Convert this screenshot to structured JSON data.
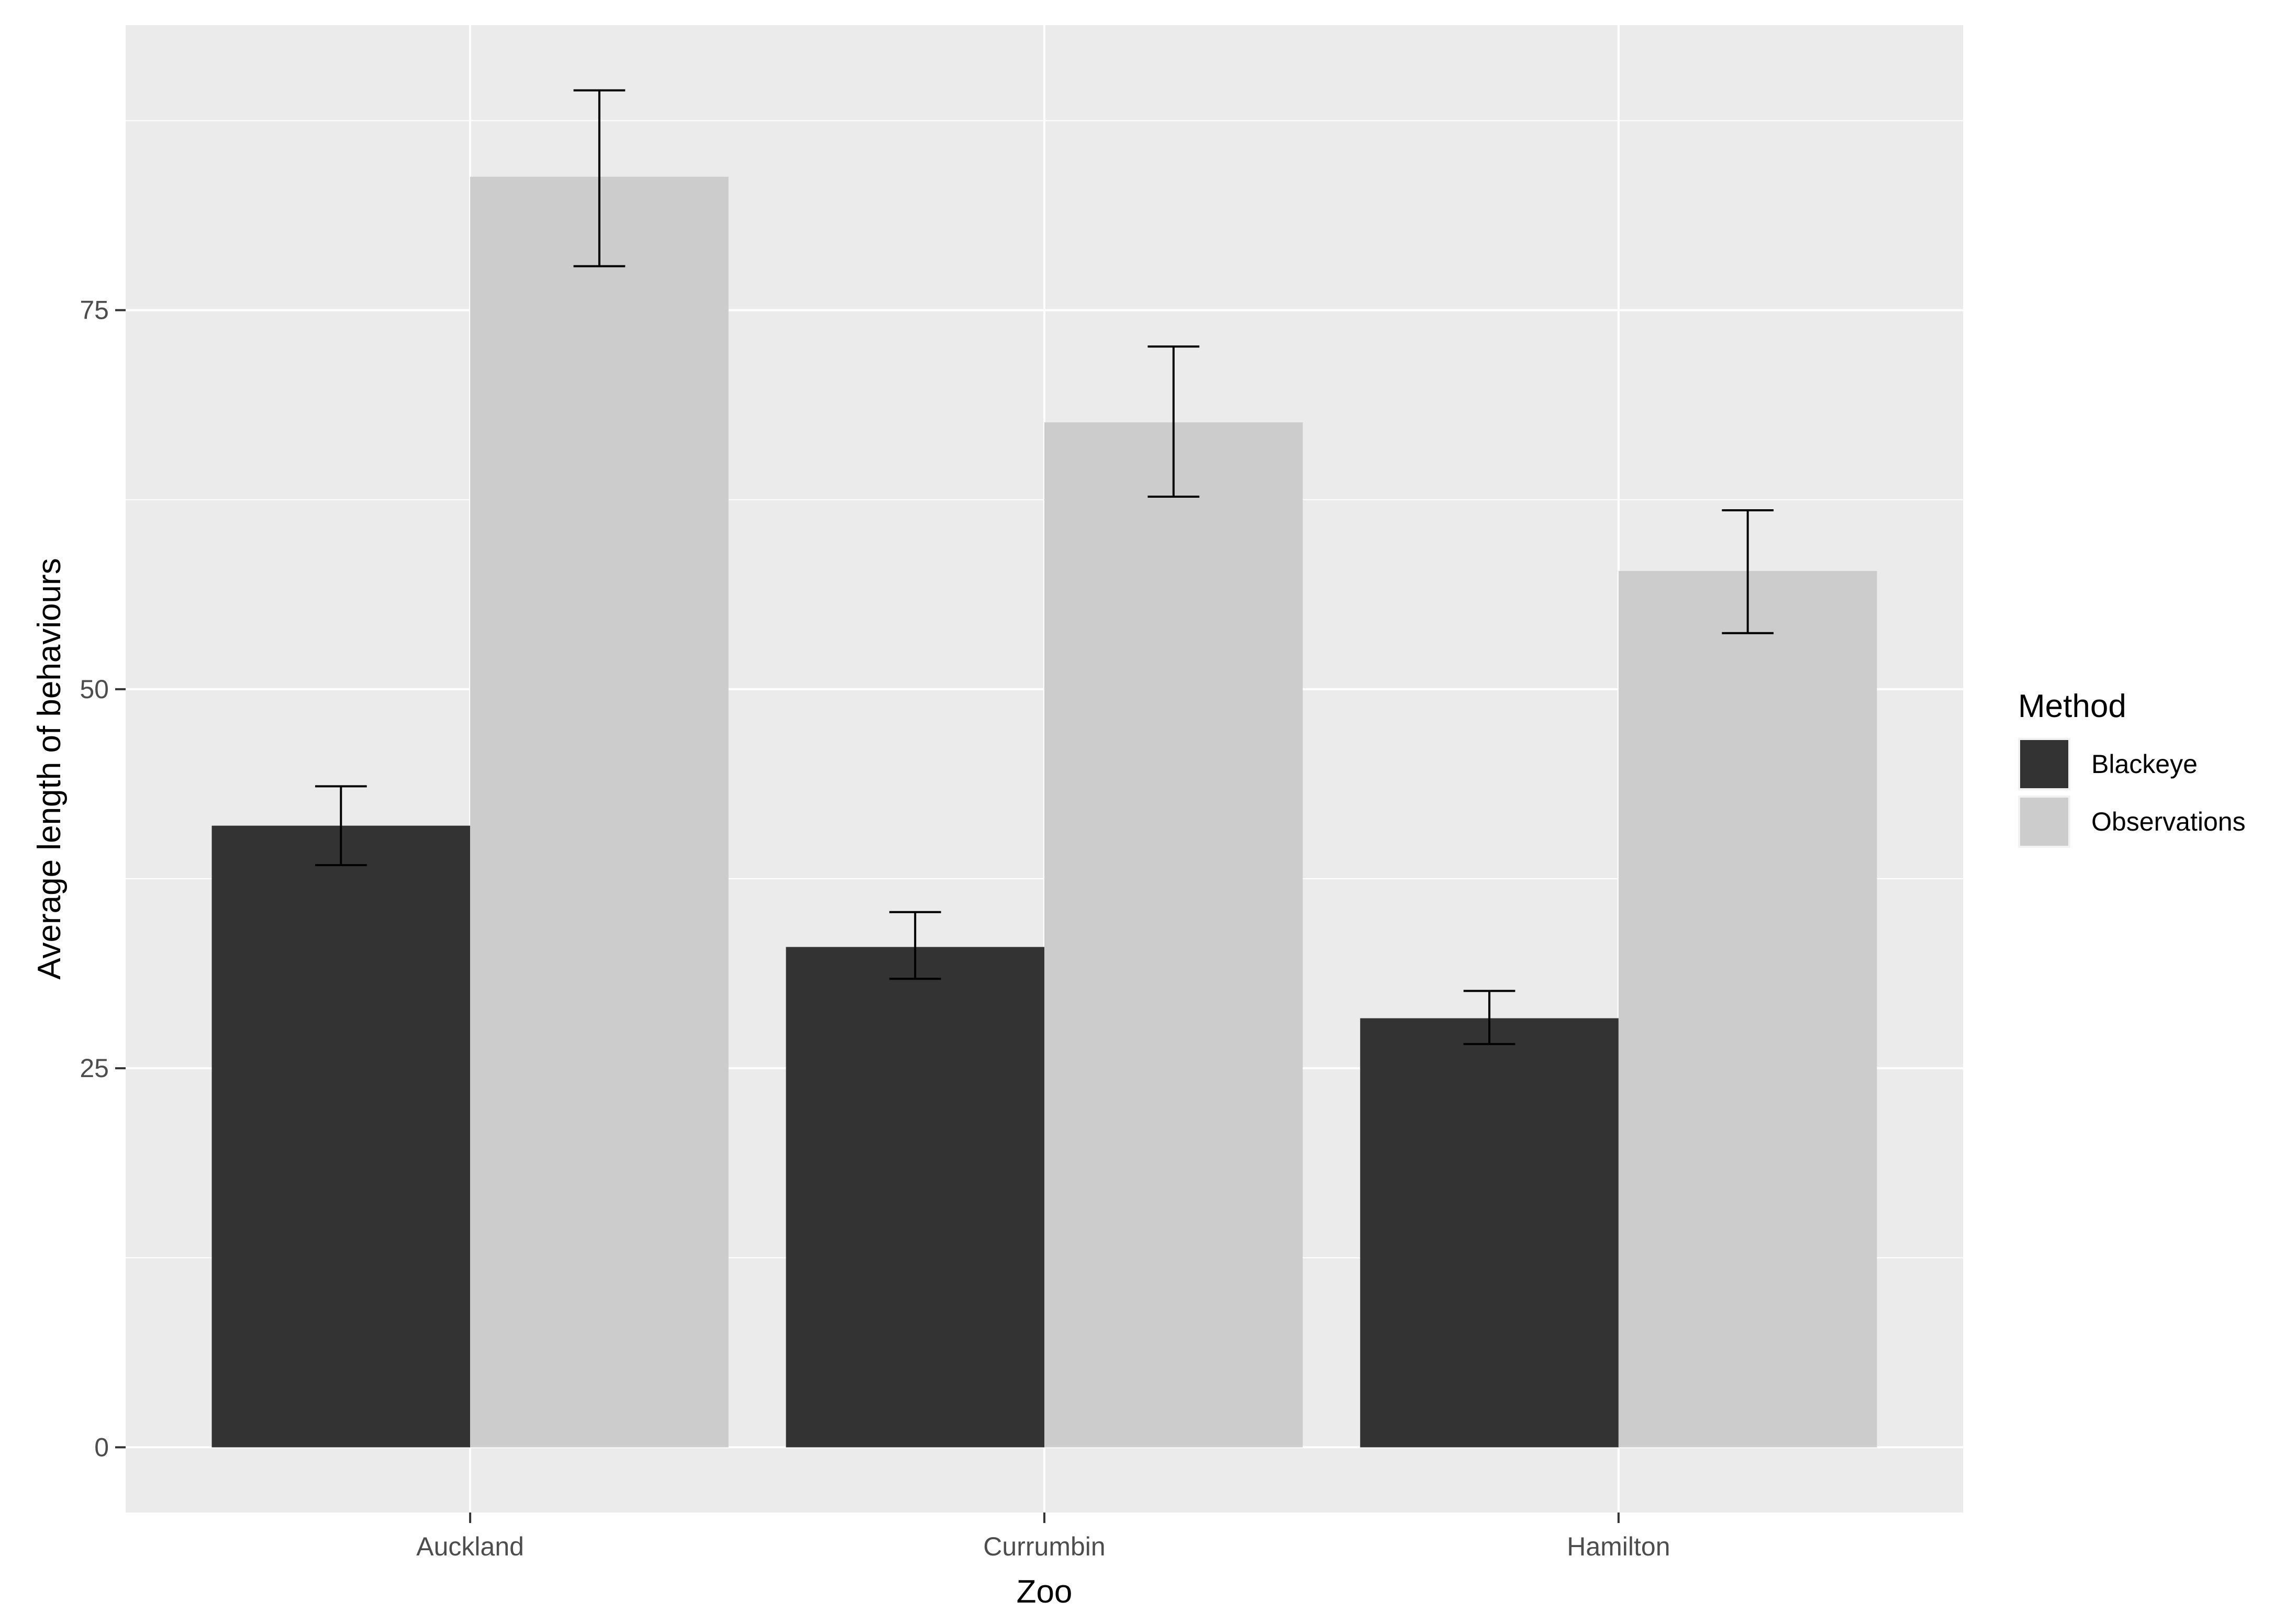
{
  "chart_data": {
    "type": "bar",
    "title": "",
    "xlabel": "Zoo",
    "ylabel": "Average length of behaviours",
    "categories": [
      "Auckland",
      "Currumbin",
      "Hamilton"
    ],
    "series": [
      {
        "name": "Blackeye",
        "color": "#333333",
        "values": [
          41.0,
          33.0,
          28.3
        ],
        "error_low": [
          38.4,
          30.9,
          26.6
        ],
        "error_high": [
          43.6,
          35.3,
          30.1
        ]
      },
      {
        "name": "Observations",
        "color": "#cccccc",
        "values": [
          83.8,
          67.6,
          57.8
        ],
        "error_low": [
          77.9,
          62.7,
          53.7
        ],
        "error_high": [
          89.5,
          72.6,
          61.8
        ]
      }
    ],
    "ylim": [
      -4.3,
      93.8
    ],
    "yticks": [
      0,
      25,
      50,
      75
    ],
    "ytick_labels": [
      "0",
      "25",
      "50",
      "75"
    ],
    "grid": true,
    "legend": {
      "title": "Method",
      "position": "right"
    },
    "panel_background": "#ebebeb",
    "gridline_color": "#ffffff",
    "error_bar_color": "#000000"
  }
}
